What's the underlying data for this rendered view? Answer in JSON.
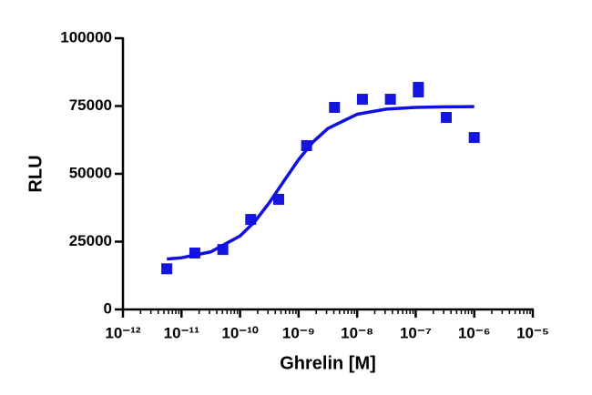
{
  "chart_data": {
    "type": "scatter",
    "x_label": "Ghrelin [M]",
    "y_label": "RLU",
    "x_log": true,
    "xlim": [
      1e-12,
      1e-05
    ],
    "xticks": [
      {
        "value": 1e-12,
        "label": "10⁻¹²"
      },
      {
        "value": 1e-11,
        "label": "10⁻¹¹"
      },
      {
        "value": 1e-10,
        "label": "10⁻¹⁰"
      },
      {
        "value": 1e-09,
        "label": "10⁻⁹"
      },
      {
        "value": 1e-08,
        "label": "10⁻⁸"
      },
      {
        "value": 1e-07,
        "label": "10⁻⁷"
      },
      {
        "value": 1e-06,
        "label": "10⁻⁶"
      },
      {
        "value": 1e-05,
        "label": "10⁻⁵"
      }
    ],
    "x_minor_ticks": true,
    "ylim": [
      0,
      100000
    ],
    "yticks": [
      0,
      25000,
      50000,
      75000,
      100000
    ],
    "series": [
      {
        "type": "scatter",
        "color": "#1515e0",
        "x": [
          5.6e-12,
          1.69e-11,
          5.08e-11,
          1.52e-10,
          4.57e-10,
          1.37e-09,
          4.1e-09,
          1.23e-08,
          3.7e-08,
          1.11e-07,
          1.11e-07,
          3.33e-07,
          1e-06
        ],
        "values": [
          15000,
          20800,
          22100,
          33200,
          40600,
          60400,
          74500,
          77500,
          77500,
          81900,
          80200,
          70800,
          63400
        ]
      },
      {
        "type": "line",
        "color": "#1010e0",
        "x": [
          5.62e-12,
          1e-11,
          3.16e-11,
          1e-10,
          1.78e-10,
          3.16e-10,
          5.62e-10,
          1e-09,
          1.78e-09,
          3.16e-09,
          1e-08,
          3.16e-08,
          1e-07,
          3.16e-07,
          1e-06
        ],
        "values": [
          18600,
          19060,
          21230,
          27090,
          32380,
          39350,
          47380,
          55250,
          61860,
          66710,
          71970,
          73870,
          74500,
          74700,
          74780
        ]
      }
    ]
  }
}
